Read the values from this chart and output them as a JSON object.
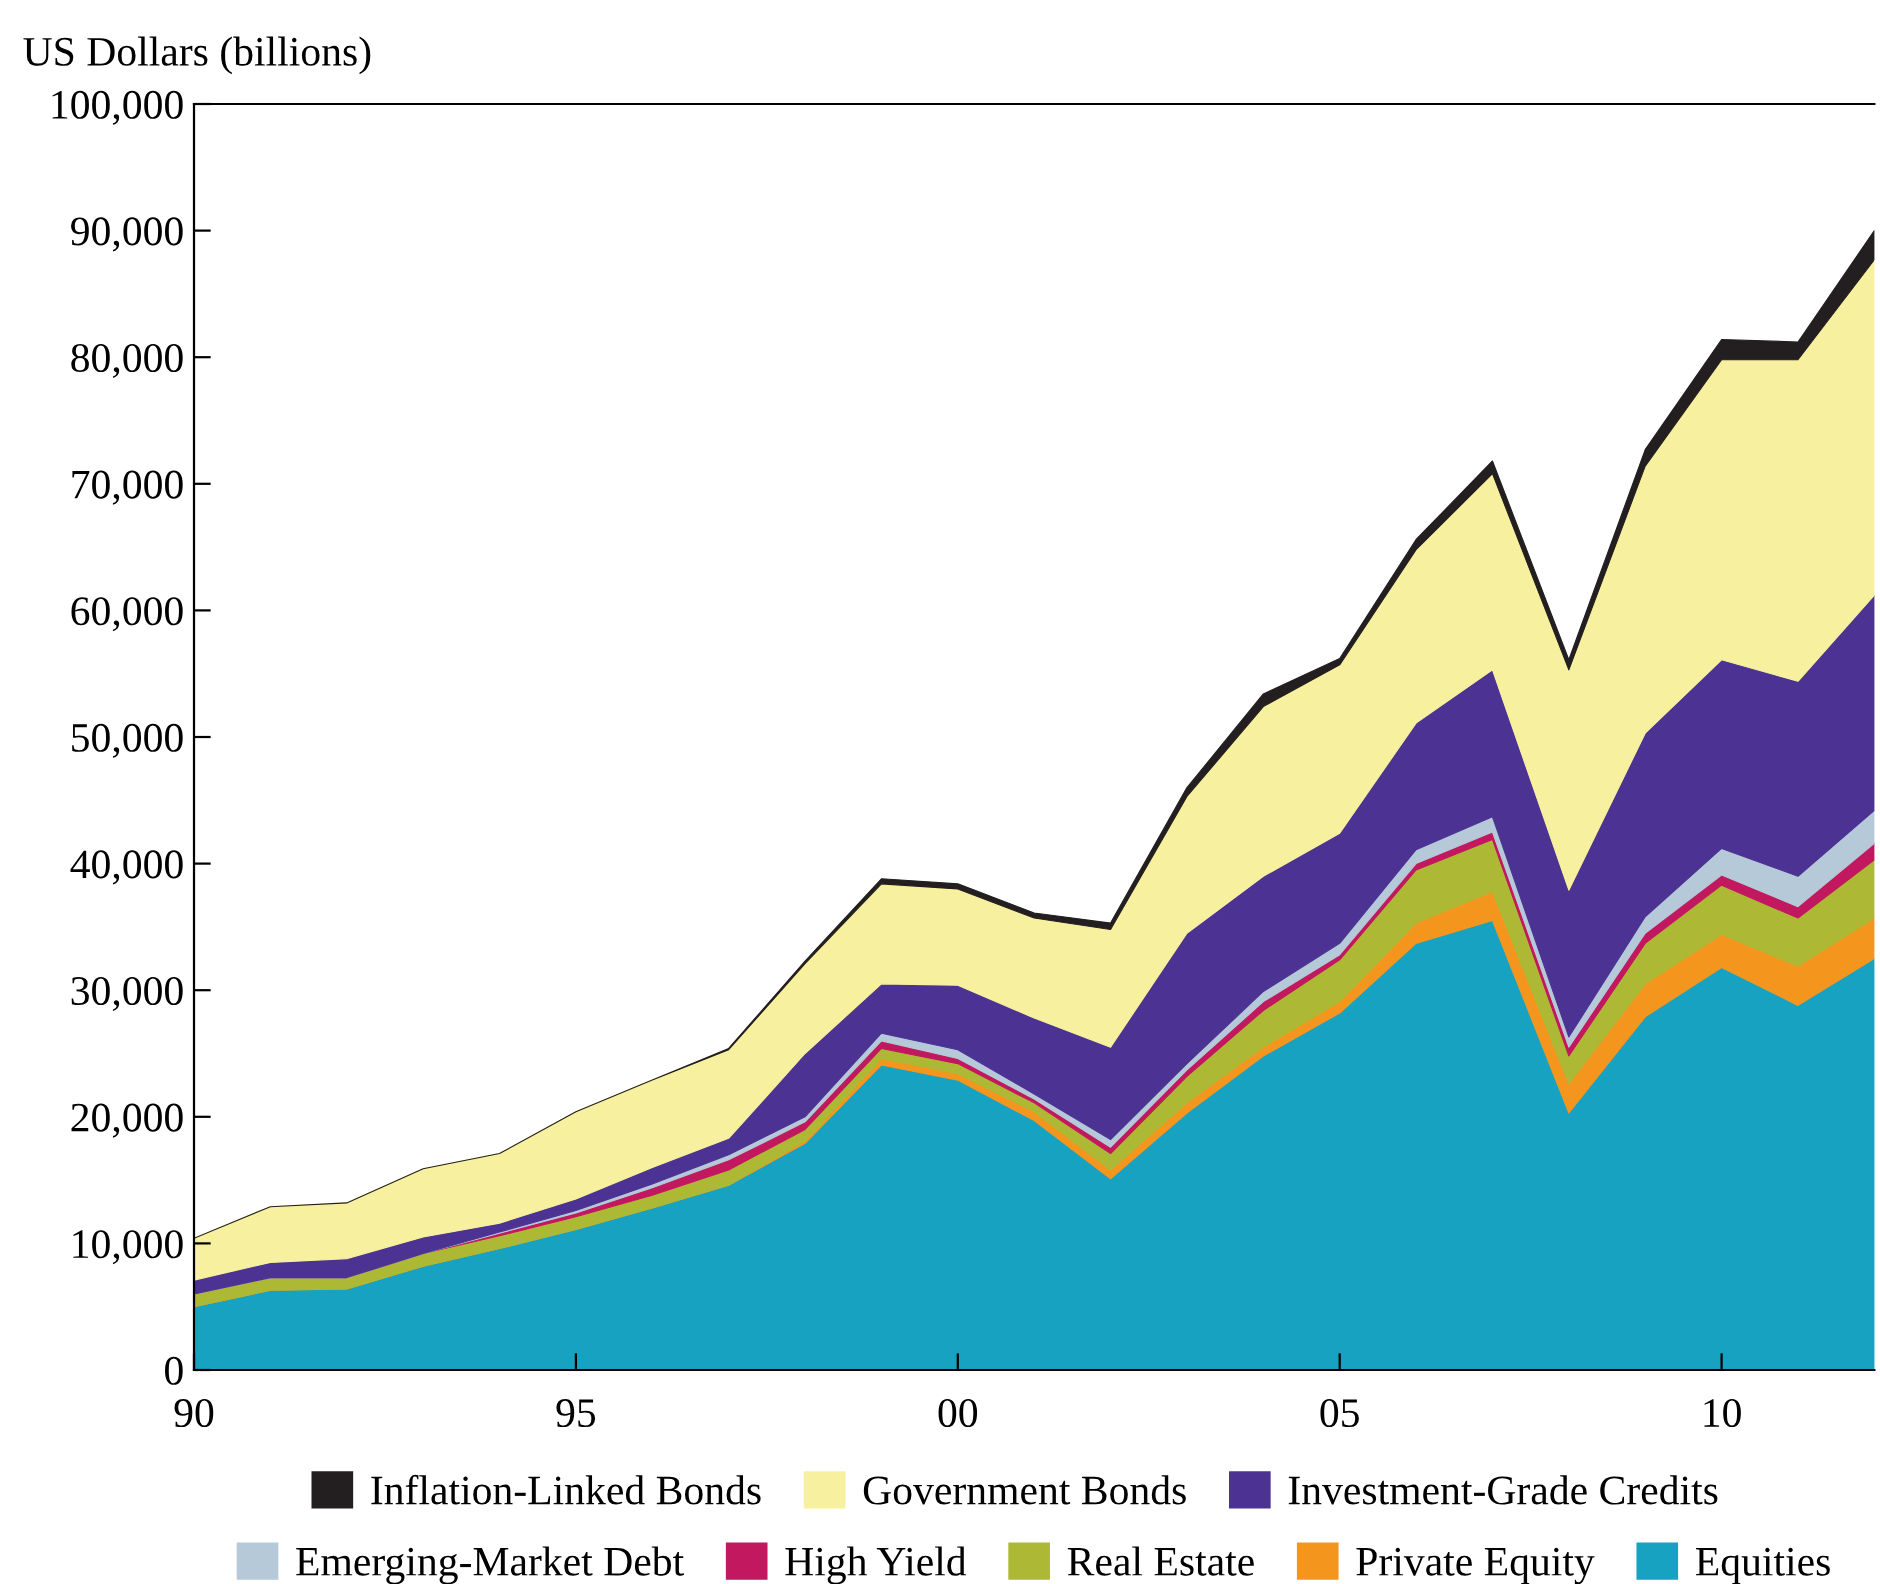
{
  "chart_data": {
    "type": "area",
    "stacked": true,
    "ylabel": "US Dollars (billions)",
    "x": [
      1990,
      1991,
      1992,
      1993,
      1994,
      1995,
      1996,
      1997,
      1998,
      1999,
      2000,
      2001,
      2002,
      2003,
      2004,
      2005,
      2006,
      2007,
      2008,
      2009,
      2010,
      2011,
      2012
    ],
    "series": [
      {
        "name": "Equities",
        "color": "#16a2c0",
        "values": [
          5000,
          6300,
          6400,
          8200,
          9600,
          11100,
          12800,
          14600,
          17900,
          24100,
          22900,
          19700,
          15100,
          20300,
          24800,
          28200,
          33700,
          35500,
          20300,
          27900,
          31800,
          28800,
          32500
        ]
      },
      {
        "name": "Private Equity",
        "color": "#f4961e",
        "values": [
          0,
          0,
          0,
          0,
          0,
          0,
          0,
          0,
          200,
          500,
          500,
          700,
          700,
          800,
          700,
          900,
          1600,
          2300,
          2300,
          2600,
          2600,
          3100,
          3200
        ]
      },
      {
        "name": "Real Estate",
        "color": "#adb935",
        "values": [
          1000,
          1000,
          900,
          1000,
          1000,
          1000,
          1000,
          1200,
          900,
          800,
          800,
          700,
          1300,
          2100,
          2900,
          3300,
          4200,
          4100,
          2200,
          3200,
          3900,
          3800,
          4600
        ]
      },
      {
        "name": "High Yield",
        "color": "#c2185f",
        "values": [
          0,
          0,
          0,
          0,
          200,
          300,
          600,
          800,
          600,
          600,
          400,
          300,
          500,
          500,
          700,
          400,
          500,
          600,
          700,
          800,
          800,
          900,
          1300
        ]
      },
      {
        "name": "Emerging-Market Debt",
        "color": "#b5c9d8",
        "values": [
          0,
          0,
          0,
          0,
          100,
          200,
          300,
          400,
          400,
          600,
          700,
          400,
          600,
          500,
          800,
          900,
          1100,
          1200,
          800,
          1300,
          2100,
          2400,
          2600
        ]
      },
      {
        "name": "Investment-Grade Credits",
        "color": "#4c3393",
        "values": [
          1100,
          1200,
          1500,
          1300,
          700,
          900,
          1300,
          1300,
          5000,
          3900,
          5100,
          6000,
          7300,
          10300,
          9100,
          8700,
          10000,
          11600,
          11600,
          14500,
          14900,
          15400,
          17000
        ]
      },
      {
        "name": "Government Bonds",
        "color": "#f7f19f",
        "values": [
          3300,
          4400,
          4400,
          5400,
          5500,
          6900,
          6900,
          7000,
          7100,
          7900,
          7600,
          7900,
          9300,
          10800,
          13400,
          13300,
          13700,
          15500,
          17400,
          21100,
          23700,
          25400,
          26500
        ]
      },
      {
        "name": "Inflation-Linked Bonds",
        "color": "#231f20",
        "values": [
          0,
          0,
          0,
          0,
          0,
          0,
          0,
          100,
          200,
          400,
          400,
          400,
          500,
          700,
          1000,
          500,
          800,
          1000,
          800,
          1300,
          1600,
          1400,
          2300
        ]
      }
    ],
    "xlim": [
      1990,
      2012
    ],
    "xticks": [
      {
        "value": 1990,
        "label": "90"
      },
      {
        "value": 1995,
        "label": "95"
      },
      {
        "value": 2000,
        "label": "00"
      },
      {
        "value": 2005,
        "label": "05"
      },
      {
        "value": 2010,
        "label": "10"
      }
    ],
    "ylim": [
      0,
      100000
    ],
    "yticks": [
      0,
      {
        "value": 10000,
        "label": "10,000"
      },
      {
        "value": 20000,
        "label": "20,000"
      },
      {
        "value": 30000,
        "label": "30,000"
      },
      {
        "value": 40000,
        "label": "40,000"
      },
      {
        "value": 50000,
        "label": "50,000"
      },
      {
        "value": 60000,
        "label": "60,000"
      },
      {
        "value": 70000,
        "label": "70,000"
      },
      {
        "value": 80000,
        "label": "80,000"
      },
      {
        "value": 90000,
        "label": "90,000"
      },
      {
        "value": 100000,
        "label": "100,000"
      }
    ],
    "grid": false,
    "legend": "bottom"
  }
}
